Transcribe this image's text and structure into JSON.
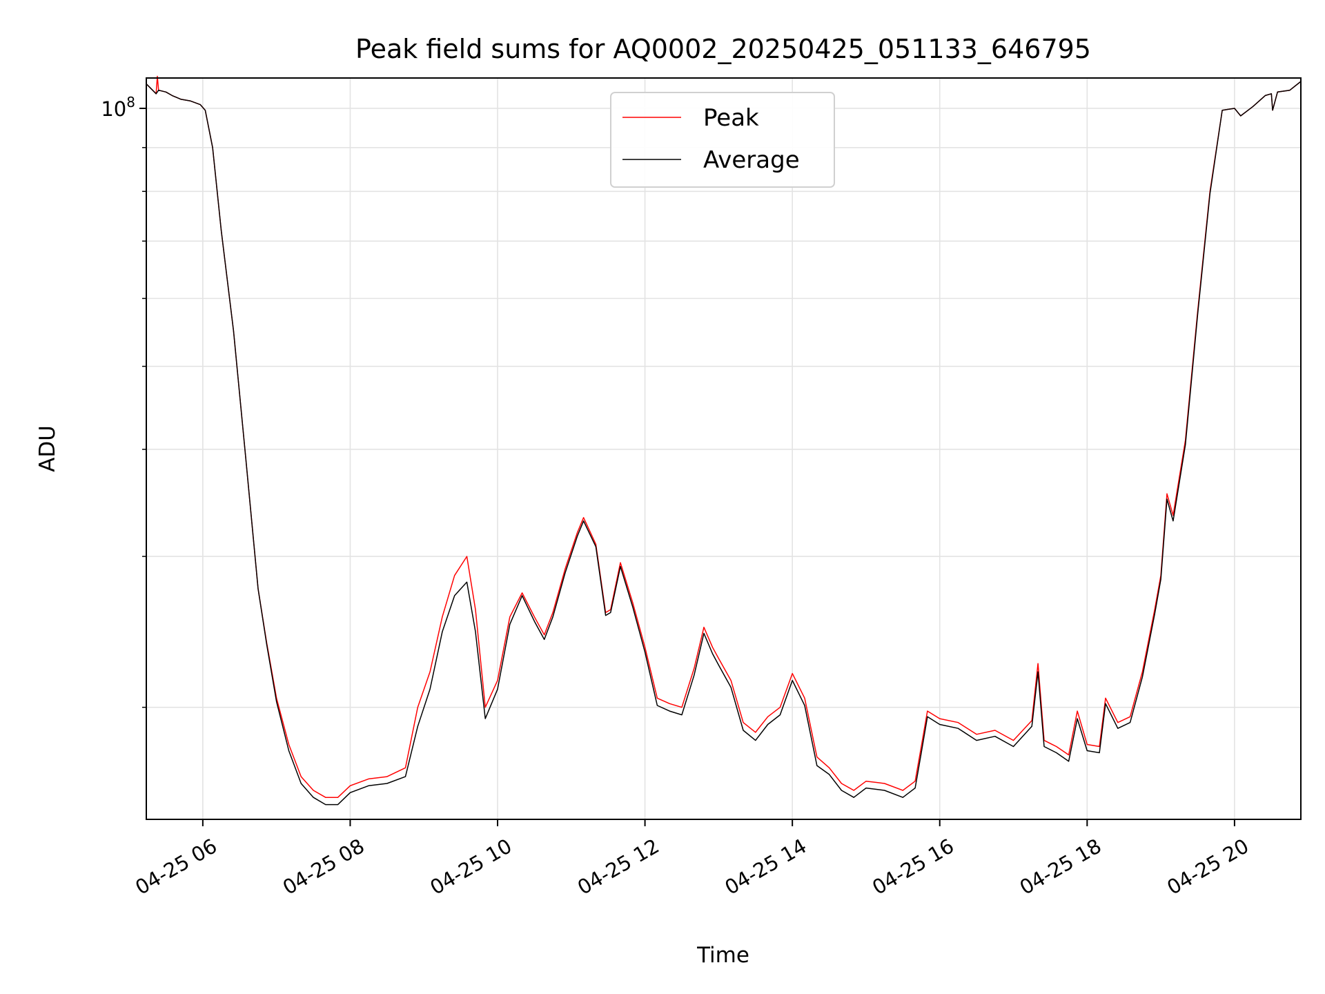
{
  "chart_data": {
    "type": "line",
    "title": "Peak field sums for AQ0002_20250425_051133_646795",
    "xlabel": "Time",
    "ylabel": "ADU",
    "yscale": "log",
    "xlim": [
      "2025-04-25 05:14",
      "2025-04-25 20:54"
    ],
    "ylim": [
      14800000,
      108500000
    ],
    "grid": true,
    "legend": {
      "placement": "top-center",
      "entries": [
        "Peak",
        "Average"
      ]
    },
    "x_ticks": [
      {
        "value": "2025-04-25 06:00",
        "label": "04-25 06"
      },
      {
        "value": "2025-04-25 08:00",
        "label": "04-25 08"
      },
      {
        "value": "2025-04-25 10:00",
        "label": "04-25 10"
      },
      {
        "value": "2025-04-25 12:00",
        "label": "04-25 12"
      },
      {
        "value": "2025-04-25 14:00",
        "label": "04-25 14"
      },
      {
        "value": "2025-04-25 16:00",
        "label": "04-25 16"
      },
      {
        "value": "2025-04-25 18:00",
        "label": "04-25 18"
      },
      {
        "value": "2025-04-25 20:00",
        "label": "04-25 20"
      }
    ],
    "y_major_ticks": [
      {
        "value": 100000000,
        "label_base": "10",
        "label_exp": "8"
      }
    ],
    "y_minor_ticks": [
      20000000,
      30000000,
      40000000,
      50000000,
      60000000,
      70000000,
      80000000,
      90000000
    ],
    "series": [
      {
        "name": "Peak",
        "color": "#ff0000",
        "x": [
          "2025-04-25 05:14",
          "2025-04-25 05:22",
          "2025-04-25 05:23",
          "2025-04-25 05:24",
          "2025-04-25 05:30",
          "2025-04-25 05:35",
          "2025-04-25 05:42",
          "2025-04-25 05:50",
          "2025-04-25 05:58",
          "2025-04-25 06:02",
          "2025-04-25 06:08",
          "2025-04-25 06:15",
          "2025-04-25 06:25",
          "2025-04-25 06:35",
          "2025-04-25 06:45",
          "2025-04-25 06:52",
          "2025-04-25 07:00",
          "2025-04-25 07:10",
          "2025-04-25 07:20",
          "2025-04-25 07:30",
          "2025-04-25 07:40",
          "2025-04-25 07:50",
          "2025-04-25 08:00",
          "2025-04-25 08:15",
          "2025-04-25 08:30",
          "2025-04-25 08:45",
          "2025-04-25 08:55",
          "2025-04-25 09:05",
          "2025-04-25 09:15",
          "2025-04-25 09:25",
          "2025-04-25 09:35",
          "2025-04-25 09:42",
          "2025-04-25 09:50",
          "2025-04-25 10:00",
          "2025-04-25 10:10",
          "2025-04-25 10:20",
          "2025-04-25 10:30",
          "2025-04-25 10:38",
          "2025-04-25 10:45",
          "2025-04-25 10:55",
          "2025-04-25 11:05",
          "2025-04-25 11:10",
          "2025-04-25 11:20",
          "2025-04-25 11:28",
          "2025-04-25 11:32",
          "2025-04-25 11:40",
          "2025-04-25 11:50",
          "2025-04-25 12:00",
          "2025-04-25 12:10",
          "2025-04-25 12:20",
          "2025-04-25 12:30",
          "2025-04-25 12:40",
          "2025-04-25 12:48",
          "2025-04-25 12:55",
          "2025-04-25 13:00",
          "2025-04-25 13:10",
          "2025-04-25 13:20",
          "2025-04-25 13:30",
          "2025-04-25 13:40",
          "2025-04-25 13:50",
          "2025-04-25 14:00",
          "2025-04-25 14:10",
          "2025-04-25 14:20",
          "2025-04-25 14:30",
          "2025-04-25 14:40",
          "2025-04-25 14:50",
          "2025-04-25 15:00",
          "2025-04-25 15:15",
          "2025-04-25 15:30",
          "2025-04-25 15:40",
          "2025-04-25 15:45",
          "2025-04-25 15:50",
          "2025-04-25 16:00",
          "2025-04-25 16:15",
          "2025-04-25 16:30",
          "2025-04-25 16:45",
          "2025-04-25 17:00",
          "2025-04-25 17:15",
          "2025-04-25 17:20",
          "2025-04-25 17:25",
          "2025-04-25 17:35",
          "2025-04-25 17:45",
          "2025-04-25 17:52",
          "2025-04-25 18:00",
          "2025-04-25 18:10",
          "2025-04-25 18:15",
          "2025-04-25 18:25",
          "2025-04-25 18:35",
          "2025-04-25 18:45",
          "2025-04-25 18:55",
          "2025-04-25 19:00",
          "2025-04-25 19:05",
          "2025-04-25 19:10",
          "2025-04-25 19:20",
          "2025-04-25 19:30",
          "2025-04-25 19:40",
          "2025-04-25 19:50",
          "2025-04-25 20:00",
          "2025-04-25 20:05",
          "2025-04-25 20:15",
          "2025-04-25 20:25",
          "2025-04-25 20:30",
          "2025-04-25 20:31",
          "2025-04-25 20:35",
          "2025-04-25 20:45",
          "2025-04-25 20:54"
        ],
        "y": [
          106800000,
          104000000,
          109000000,
          105000000,
          104500000,
          103500000,
          102500000,
          102000000,
          101000000,
          99500000,
          90000000,
          72000000,
          55000000,
          39000000,
          27500000,
          23800000,
          20500000,
          18100000,
          16600000,
          16000000,
          15700000,
          15700000,
          16200000,
          16500000,
          16600000,
          17000000,
          20000000,
          22000000,
          25500000,
          28500000,
          30000000,
          26000000,
          20000000,
          21500000,
          25500000,
          27200000,
          25500000,
          24300000,
          25800000,
          29000000,
          32000000,
          33300000,
          31000000,
          25800000,
          26000000,
          29500000,
          26500000,
          23500000,
          20500000,
          20200000,
          20000000,
          22200000,
          24800000,
          23500000,
          22800000,
          21500000,
          19200000,
          18700000,
          19500000,
          20000000,
          21900000,
          20500000,
          17500000,
          17000000,
          16300000,
          16000000,
          16400000,
          16300000,
          16000000,
          16400000,
          18000000,
          19800000,
          19400000,
          19200000,
          18600000,
          18800000,
          18300000,
          19300000,
          22500000,
          18300000,
          18000000,
          17600000,
          19800000,
          18100000,
          18000000,
          20500000,
          19200000,
          19500000,
          22000000,
          26000000,
          28500000,
          35500000,
          33500000,
          41000000,
          58000000,
          80000000,
          99500000,
          100000000,
          98000000,
          100500000,
          103500000,
          104000000,
          99500000,
          104500000,
          105000000,
          107500000
        ]
      },
      {
        "name": "Average",
        "color": "#000000",
        "x": [
          "2025-04-25 05:14",
          "2025-04-25 05:22",
          "2025-04-25 05:24",
          "2025-04-25 05:30",
          "2025-04-25 05:35",
          "2025-04-25 05:42",
          "2025-04-25 05:50",
          "2025-04-25 05:58",
          "2025-04-25 06:02",
          "2025-04-25 06:08",
          "2025-04-25 06:15",
          "2025-04-25 06:25",
          "2025-04-25 06:35",
          "2025-04-25 06:45",
          "2025-04-25 06:52",
          "2025-04-25 07:00",
          "2025-04-25 07:10",
          "2025-04-25 07:20",
          "2025-04-25 07:30",
          "2025-04-25 07:40",
          "2025-04-25 07:50",
          "2025-04-25 08:00",
          "2025-04-25 08:15",
          "2025-04-25 08:30",
          "2025-04-25 08:45",
          "2025-04-25 08:55",
          "2025-04-25 09:05",
          "2025-04-25 09:15",
          "2025-04-25 09:25",
          "2025-04-25 09:35",
          "2025-04-25 09:42",
          "2025-04-25 09:50",
          "2025-04-25 10:00",
          "2025-04-25 10:10",
          "2025-04-25 10:20",
          "2025-04-25 10:30",
          "2025-04-25 10:38",
          "2025-04-25 10:45",
          "2025-04-25 10:55",
          "2025-04-25 11:05",
          "2025-04-25 11:10",
          "2025-04-25 11:20",
          "2025-04-25 11:28",
          "2025-04-25 11:32",
          "2025-04-25 11:40",
          "2025-04-25 11:50",
          "2025-04-25 12:00",
          "2025-04-25 12:10",
          "2025-04-25 12:20",
          "2025-04-25 12:30",
          "2025-04-25 12:40",
          "2025-04-25 12:48",
          "2025-04-25 12:55",
          "2025-04-25 13:00",
          "2025-04-25 13:10",
          "2025-04-25 13:20",
          "2025-04-25 13:30",
          "2025-04-25 13:40",
          "2025-04-25 13:50",
          "2025-04-25 14:00",
          "2025-04-25 14:10",
          "2025-04-25 14:20",
          "2025-04-25 14:30",
          "2025-04-25 14:40",
          "2025-04-25 14:50",
          "2025-04-25 15:00",
          "2025-04-25 15:15",
          "2025-04-25 15:30",
          "2025-04-25 15:40",
          "2025-04-25 15:45",
          "2025-04-25 15:50",
          "2025-04-25 16:00",
          "2025-04-25 16:15",
          "2025-04-25 16:30",
          "2025-04-25 16:45",
          "2025-04-25 17:00",
          "2025-04-25 17:15",
          "2025-04-25 17:20",
          "2025-04-25 17:25",
          "2025-04-25 17:35",
          "2025-04-25 17:45",
          "2025-04-25 17:52",
          "2025-04-25 18:00",
          "2025-04-25 18:10",
          "2025-04-25 18:15",
          "2025-04-25 18:25",
          "2025-04-25 18:35",
          "2025-04-25 18:45",
          "2025-04-25 18:55",
          "2025-04-25 19:00",
          "2025-04-25 19:05",
          "2025-04-25 19:10",
          "2025-04-25 19:20",
          "2025-04-25 19:30",
          "2025-04-25 19:40",
          "2025-04-25 19:50",
          "2025-04-25 20:00",
          "2025-04-25 20:05",
          "2025-04-25 20:15",
          "2025-04-25 20:25",
          "2025-04-25 20:30",
          "2025-04-25 20:31",
          "2025-04-25 20:35",
          "2025-04-25 20:45",
          "2025-04-25 20:54"
        ],
        "y": [
          106800000,
          104000000,
          105000000,
          104500000,
          103500000,
          102500000,
          102000000,
          101000000,
          99500000,
          90000000,
          72000000,
          55000000,
          39000000,
          27500000,
          23700000,
          20300000,
          17800000,
          16300000,
          15700000,
          15400000,
          15400000,
          15900000,
          16200000,
          16300000,
          16600000,
          19000000,
          21000000,
          24500000,
          27000000,
          28000000,
          24500000,
          19400000,
          21000000,
          25000000,
          27000000,
          25200000,
          24000000,
          25500000,
          28700000,
          31700000,
          33000000,
          30800000,
          25600000,
          25800000,
          29200000,
          26200000,
          23200000,
          20100000,
          19800000,
          19600000,
          21800000,
          24400000,
          23100000,
          22400000,
          21100000,
          18800000,
          18300000,
          19100000,
          19600000,
          21500000,
          20100000,
          17100000,
          16700000,
          16000000,
          15700000,
          16100000,
          16000000,
          15700000,
          16100000,
          17700000,
          19500000,
          19100000,
          18900000,
          18300000,
          18500000,
          18000000,
          19000000,
          22000000,
          18000000,
          17700000,
          17300000,
          19400000,
          17800000,
          17700000,
          20200000,
          18900000,
          19200000,
          21700000,
          25700000,
          28200000,
          35000000,
          33000000,
          40500000,
          57500000,
          79500000,
          99500000,
          100000000,
          98000000,
          100500000,
          103500000,
          104000000,
          99500000,
          104500000,
          105000000,
          107500000
        ]
      }
    ]
  }
}
